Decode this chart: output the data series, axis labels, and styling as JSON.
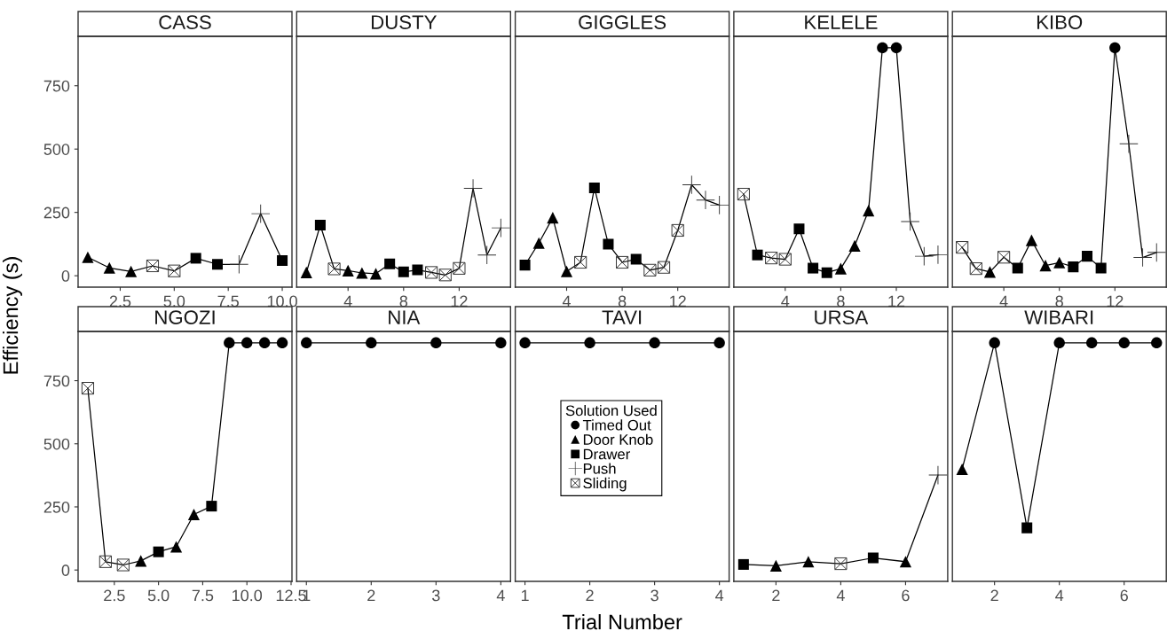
{
  "chart_data": [
    {
      "type": "line",
      "title": "CASS",
      "ylabel": "Efficiency (s)",
      "legend": "bottom right",
      "legend_title": "Solution Used",
      "x": [
        1,
        2,
        3,
        4,
        5,
        6,
        7,
        8,
        9,
        10
      ],
      "xlim": [
        0.55,
        10.45
      ],
      "xticks": [
        {
          "value": 2.5,
          "label": "2.5"
        },
        {
          "value": 5,
          "label": "5.0"
        },
        {
          "value": 7.5,
          "label": "7.5"
        },
        {
          "value": 10,
          "label": "10.0"
        }
      ],
      "ylim": [
        -45,
        945
      ],
      "yticks": [
        0,
        250,
        500,
        750
      ],
      "series": [
        {
          "color": "#000000",
          "values": [
            73,
            31,
            17,
            39,
            19,
            69,
            45,
            45,
            245,
            60
          ]
        },
        {
          "type": "scatter",
          "name": "Door Knob",
          "marker": "triangle",
          "color": "#000000",
          "x": [
            1,
            2,
            3
          ],
          "values": [
            73,
            31,
            17
          ]
        },
        {
          "type": "scatter",
          "name": "Drawer",
          "marker": "square",
          "color": "#000000",
          "x": [
            6,
            7,
            10
          ],
          "values": [
            69,
            45,
            60
          ]
        },
        {
          "type": "scatter",
          "name": "Push",
          "marker": "cross",
          "color": "#333333",
          "x": [
            8,
            9
          ],
          "values": [
            45,
            245
          ]
        },
        {
          "type": "scatter",
          "name": "Sliding",
          "color": "#333333",
          "x": [
            4,
            5
          ],
          "values": [
            39,
            19
          ]
        }
      ]
    },
    {
      "type": "line",
      "title": "DUSTY",
      "x": [
        1,
        2,
        3,
        4,
        5,
        6,
        7,
        8,
        9,
        10,
        11,
        12,
        13,
        14,
        15
      ],
      "xlim": [
        0.3,
        15.7
      ],
      "xticks": [
        4,
        8,
        12
      ],
      "ylim": [
        -45,
        945
      ],
      "yticks": [
        0,
        250,
        500,
        750
      ],
      "tick_labels": "x",
      "series": [
        {
          "color": "#000000",
          "values": [
            13,
            200,
            27,
            20,
            11,
            8,
            47,
            15,
            23,
            13,
            3,
            29,
            345,
            82,
            189
          ]
        },
        {
          "type": "scatter",
          "marker": "triangle",
          "color": "#000000",
          "x": [
            1,
            4,
            5,
            6
          ],
          "values": [
            13,
            20,
            11,
            8
          ]
        },
        {
          "type": "scatter",
          "marker": "square",
          "color": "#000000",
          "x": [
            2,
            7,
            8,
            9
          ],
          "values": [
            200,
            47,
            15,
            23
          ]
        },
        {
          "type": "scatter",
          "marker": "cross",
          "color": "#333333",
          "x": [
            13,
            14,
            15
          ],
          "values": [
            345,
            82,
            189
          ]
        },
        {
          "type": "scatter",
          "color": "#333333",
          "x": [
            3,
            10,
            11,
            12
          ],
          "values": [
            27,
            13,
            3,
            29
          ]
        }
      ]
    },
    {
      "type": "line",
      "title": "GIGGLES",
      "x": [
        1,
        2,
        3,
        4,
        5,
        6,
        7,
        8,
        9,
        10,
        11,
        12,
        13,
        14,
        15
      ],
      "xlim": [
        0.3,
        15.7
      ],
      "xticks": [
        4,
        8,
        12
      ],
      "ylim": [
        -45,
        945
      ],
      "yticks": [
        0,
        250,
        500,
        750
      ],
      "tick_labels": "x",
      "series": [
        {
          "color": "#000000",
          "values": [
            42,
            129,
            229,
            17,
            53,
            347,
            125,
            53,
            65,
            22,
            33,
            179,
            359,
            299,
            279
          ]
        },
        {
          "type": "scatter",
          "marker": "triangle",
          "color": "#000000",
          "x": [
            2,
            3,
            4
          ],
          "values": [
            129,
            229,
            17
          ]
        },
        {
          "type": "scatter",
          "marker": "square",
          "color": "#000000",
          "x": [
            1,
            6,
            7,
            9
          ],
          "values": [
            42,
            347,
            125,
            65
          ]
        },
        {
          "type": "scatter",
          "marker": "cross",
          "color": "#333333",
          "x": [
            13,
            14,
            15
          ],
          "values": [
            359,
            299,
            279
          ]
        },
        {
          "type": "scatter",
          "color": "#333333",
          "x": [
            5,
            8,
            10,
            11,
            12
          ],
          "values": [
            53,
            53,
            22,
            33,
            179
          ]
        }
      ]
    },
    {
      "type": "line",
      "title": "KELELE",
      "x": [
        1,
        2,
        3,
        4,
        5,
        6,
        7,
        8,
        9,
        10,
        11,
        12,
        13,
        14,
        15
      ],
      "xlim": [
        0.3,
        15.7
      ],
      "xticks": [
        4,
        8,
        12
      ],
      "ylim": [
        -45,
        945
      ],
      "yticks": [
        0,
        250,
        500,
        750
      ],
      "tick_labels": "x",
      "series": [
        {
          "color": "#000000",
          "values": [
            322,
            82,
            70,
            65,
            185,
            30,
            12,
            28,
            118,
            257,
            900,
            900,
            214,
            77,
            83
          ]
        },
        {
          "type": "scatter",
          "name": "Timed Out",
          "marker": "circle",
          "color": "#000000",
          "x": [
            11,
            12
          ],
          "values": [
            900,
            900
          ]
        },
        {
          "type": "scatter",
          "marker": "triangle",
          "color": "#000000",
          "x": [
            8,
            9,
            10
          ],
          "values": [
            28,
            118,
            257
          ]
        },
        {
          "type": "scatter",
          "marker": "square",
          "color": "#000000",
          "x": [
            2,
            5,
            6,
            7
          ],
          "values": [
            82,
            185,
            30,
            12
          ]
        },
        {
          "type": "scatter",
          "marker": "cross",
          "color": "#333333",
          "x": [
            13,
            14,
            15
          ],
          "values": [
            214,
            77,
            83
          ]
        },
        {
          "type": "scatter",
          "color": "#333333",
          "x": [
            1,
            3,
            4
          ],
          "values": [
            322,
            70,
            65
          ]
        }
      ]
    },
    {
      "type": "line",
      "title": "KIBO",
      "x": [
        1,
        2,
        3,
        4,
        5,
        6,
        7,
        8,
        9,
        10,
        11,
        12,
        13,
        14,
        15
      ],
      "xlim": [
        0.3,
        15.7
      ],
      "xticks": [
        4,
        8,
        12
      ],
      "ylim": [
        -45,
        945
      ],
      "yticks": [
        0,
        250,
        500,
        750
      ],
      "tick_labels": "x",
      "series": [
        {
          "color": "#000000",
          "values": [
            112,
            28,
            15,
            73,
            30,
            140,
            40,
            52,
            35,
            77,
            30,
            900,
            521,
            72,
            92
          ]
        },
        {
          "type": "scatter",
          "marker": "circle",
          "color": "#000000",
          "x": [
            12
          ],
          "values": [
            900
          ]
        },
        {
          "type": "scatter",
          "marker": "triangle",
          "color": "#000000",
          "x": [
            3,
            6,
            7,
            8
          ],
          "values": [
            15,
            140,
            40,
            52
          ]
        },
        {
          "type": "scatter",
          "marker": "square",
          "color": "#000000",
          "x": [
            5,
            9,
            10,
            11
          ],
          "values": [
            30,
            35,
            77,
            30
          ]
        },
        {
          "type": "scatter",
          "marker": "cross",
          "color": "#333333",
          "x": [
            13,
            14,
            15
          ],
          "values": [
            521,
            72,
            92
          ]
        },
        {
          "type": "scatter",
          "color": "#333333",
          "x": [
            1,
            2,
            4
          ],
          "values": [
            112,
            28,
            73
          ]
        }
      ]
    },
    {
      "type": "line",
      "title": "NGOZI",
      "x": [
        1,
        2,
        3,
        4,
        5,
        6,
        7,
        8,
        9,
        10,
        11,
        12
      ],
      "xlim": [
        0.45,
        12.55
      ],
      "xticks": [
        {
          "value": 2.5,
          "label": "2.5"
        },
        {
          "value": 5,
          "label": "5.0"
        },
        {
          "value": 7.5,
          "label": "7.5"
        },
        {
          "value": 10,
          "label": "10.0"
        },
        {
          "value": 12.5,
          "label": "12.5"
        }
      ],
      "ylim": [
        -45,
        945
      ],
      "yticks": [
        0,
        250,
        500,
        750
      ],
      "series": [
        {
          "color": "#000000",
          "values": [
            720,
            33,
            20,
            36,
            72,
            92,
            220,
            253,
            900,
            900,
            900,
            900
          ]
        },
        {
          "type": "scatter",
          "marker": "circle",
          "color": "#000000",
          "x": [
            9,
            10,
            11,
            12
          ],
          "values": [
            900,
            900,
            900,
            900
          ]
        },
        {
          "type": "scatter",
          "marker": "triangle",
          "color": "#000000",
          "x": [
            4,
            6,
            7
          ],
          "values": [
            36,
            92,
            220
          ]
        },
        {
          "type": "scatter",
          "marker": "square",
          "color": "#000000",
          "x": [
            5,
            8
          ],
          "values": [
            72,
            253
          ]
        },
        {
          "type": "scatter",
          "color": "#333333",
          "x": [
            1,
            2,
            3
          ],
          "values": [
            720,
            33,
            20
          ]
        }
      ]
    },
    {
      "type": "line",
      "title": "NIA",
      "x": [
        1,
        2,
        3,
        4
      ],
      "xlim": [
        0.85,
        4.15
      ],
      "xticks": [
        1,
        2,
        3,
        4
      ],
      "ylim": [
        -45,
        945
      ],
      "yticks": [
        0,
        250,
        500,
        750
      ],
      "tick_labels": "x",
      "series": [
        {
          "color": "#000000",
          "values": [
            900,
            900,
            900,
            900
          ]
        },
        {
          "type": "scatter",
          "marker": "circle",
          "color": "#000000",
          "x": [
            1,
            2,
            3,
            4
          ],
          "values": [
            900,
            900,
            900,
            900
          ]
        }
      ]
    },
    {
      "type": "line",
      "title": "TAVI",
      "xlabel": "Trial Number",
      "x": [
        1,
        2,
        3,
        4
      ],
      "xlim": [
        0.85,
        4.15
      ],
      "xticks": [
        1,
        2,
        3,
        4
      ],
      "ylim": [
        -45,
        945
      ],
      "yticks": [
        0,
        250,
        500,
        750
      ],
      "tick_labels": "x",
      "series": [
        {
          "color": "#000000",
          "values": [
            900,
            900,
            900,
            900
          ]
        },
        {
          "type": "scatter",
          "marker": "circle",
          "color": "#000000",
          "x": [
            1,
            2,
            3,
            4
          ],
          "values": [
            900,
            900,
            900,
            900
          ]
        }
      ]
    },
    {
      "type": "line",
      "title": "URSA",
      "x": [
        1,
        2,
        3,
        4,
        5,
        6,
        7
      ],
      "xlim": [
        0.7,
        7.3
      ],
      "xticks": [
        2,
        4,
        6
      ],
      "ylim": [
        -45,
        945
      ],
      "yticks": [
        0,
        250,
        500,
        750
      ],
      "tick_labels": "x",
      "series": [
        {
          "color": "#000000",
          "values": [
            22,
            17,
            33,
            25,
            48,
            33,
            376
          ]
        },
        {
          "type": "scatter",
          "marker": "triangle",
          "color": "#000000",
          "x": [
            2,
            3,
            6
          ],
          "values": [
            17,
            33,
            33
          ]
        },
        {
          "type": "scatter",
          "marker": "square",
          "color": "#000000",
          "x": [
            1,
            5
          ],
          "values": [
            22,
            48
          ]
        },
        {
          "type": "scatter",
          "marker": "cross",
          "color": "#333333",
          "x": [
            7
          ],
          "values": [
            376
          ]
        },
        {
          "type": "scatter",
          "color": "#333333",
          "x": [
            4
          ],
          "values": [
            25
          ]
        }
      ]
    },
    {
      "type": "line",
      "title": "WIBARI",
      "x": [
        1,
        2,
        3,
        4,
        5,
        6,
        7
      ],
      "xlim": [
        0.7,
        7.3
      ],
      "xticks": [
        2,
        4,
        6
      ],
      "ylim": [
        -45,
        945
      ],
      "yticks": [
        0,
        250,
        500,
        750
      ],
      "tick_labels": "x",
      "series": [
        {
          "color": "#000000",
          "values": [
            399,
            900,
            167,
            900,
            900,
            900,
            900
          ]
        },
        {
          "type": "scatter",
          "marker": "circle",
          "color": "#000000",
          "x": [
            2,
            4,
            5,
            6,
            7
          ],
          "values": [
            900,
            900,
            900,
            900,
            900
          ]
        },
        {
          "type": "scatter",
          "marker": "triangle",
          "color": "#000000",
          "x": [
            1
          ],
          "values": [
            399
          ]
        },
        {
          "type": "scatter",
          "marker": "square",
          "color": "#000000",
          "x": [
            3
          ],
          "values": [
            167
          ]
        }
      ]
    }
  ]
}
